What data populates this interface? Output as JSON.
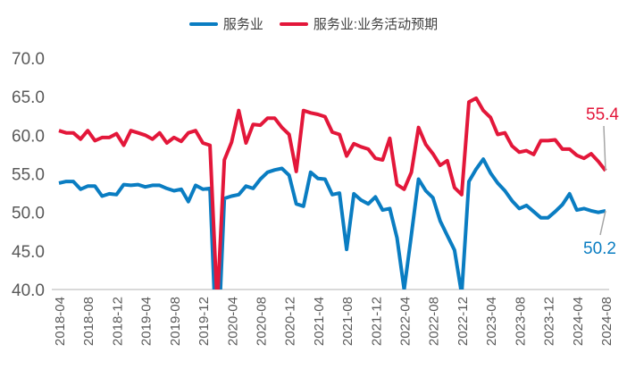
{
  "chart_data": {
    "type": "line",
    "title": "",
    "xlabel": "",
    "ylabel": "",
    "ylim": [
      40,
      70
    ],
    "yticks": [
      "40.0",
      "45.0",
      "50.0",
      "55.0",
      "60.0",
      "65.0",
      "70.0"
    ],
    "grid": false,
    "legend_placement": "top-center",
    "x_start": "2018-04",
    "x_tick_labels": [
      "2018-04",
      "2018-08",
      "2018-12",
      "2019-04",
      "2019-08",
      "2019-12",
      "2020-04",
      "2020-08",
      "2020-12",
      "2021-04",
      "2021-08",
      "2021-12",
      "2022-04",
      "2022-08",
      "2022-12",
      "2023-04",
      "2023-08",
      "2023-12",
      "2024-04",
      "2024-08"
    ],
    "series": [
      {
        "name": "服务业",
        "color": "#0A7DC2",
        "values": [
          53.8,
          54.0,
          54.0,
          53.0,
          53.4,
          53.4,
          52.1,
          52.4,
          52.3,
          53.6,
          53.5,
          53.6,
          53.3,
          53.5,
          53.5,
          53.1,
          52.8,
          53.0,
          51.4,
          53.5,
          53.0,
          53.1,
          30.1,
          51.8,
          52.1,
          52.3,
          53.4,
          53.1,
          54.3,
          55.2,
          55.5,
          55.7,
          54.8,
          51.1,
          50.8,
          55.2,
          54.4,
          54.3,
          52.3,
          52.5,
          45.2,
          52.4,
          51.6,
          51.1,
          52.0,
          50.3,
          50.5,
          46.7,
          40.0,
          47.1,
          54.3,
          52.8,
          51.9,
          48.9,
          47.0,
          45.1,
          39.4,
          54.0,
          55.6,
          56.9,
          55.1,
          53.8,
          52.8,
          51.5,
          50.5,
          50.9,
          50.1,
          49.3,
          49.3,
          50.1,
          51.0,
          52.4,
          50.3,
          50.5,
          50.2,
          50.0,
          50.2
        ],
        "end_label": "50.2"
      },
      {
        "name": "服务业:业务活动预期",
        "color": "#E3173A",
        "values": [
          60.6,
          60.3,
          60.3,
          59.5,
          60.6,
          59.3,
          59.7,
          59.7,
          60.2,
          58.7,
          60.6,
          60.3,
          60.0,
          59.5,
          60.3,
          59.0,
          59.7,
          59.2,
          60.3,
          60.6,
          59.0,
          58.7,
          38.0,
          56.8,
          59.1,
          63.2,
          59.0,
          61.4,
          61.3,
          62.2,
          62.2,
          61.0,
          60.1,
          55.3,
          63.2,
          62.9,
          62.7,
          62.4,
          60.4,
          60.1,
          57.3,
          58.9,
          58.5,
          58.2,
          57.0,
          56.8,
          59.6,
          53.6,
          53.0,
          55.2,
          61.0,
          58.8,
          57.6,
          56.1,
          56.7,
          53.2,
          52.3,
          64.3,
          64.8,
          63.2,
          62.3,
          60.1,
          60.3,
          58.6,
          57.8,
          58.0,
          57.5,
          59.3,
          59.3,
          59.4,
          58.2,
          58.2,
          57.4,
          57.0,
          57.6,
          56.6,
          55.4
        ],
        "end_label": "55.4"
      }
    ]
  }
}
